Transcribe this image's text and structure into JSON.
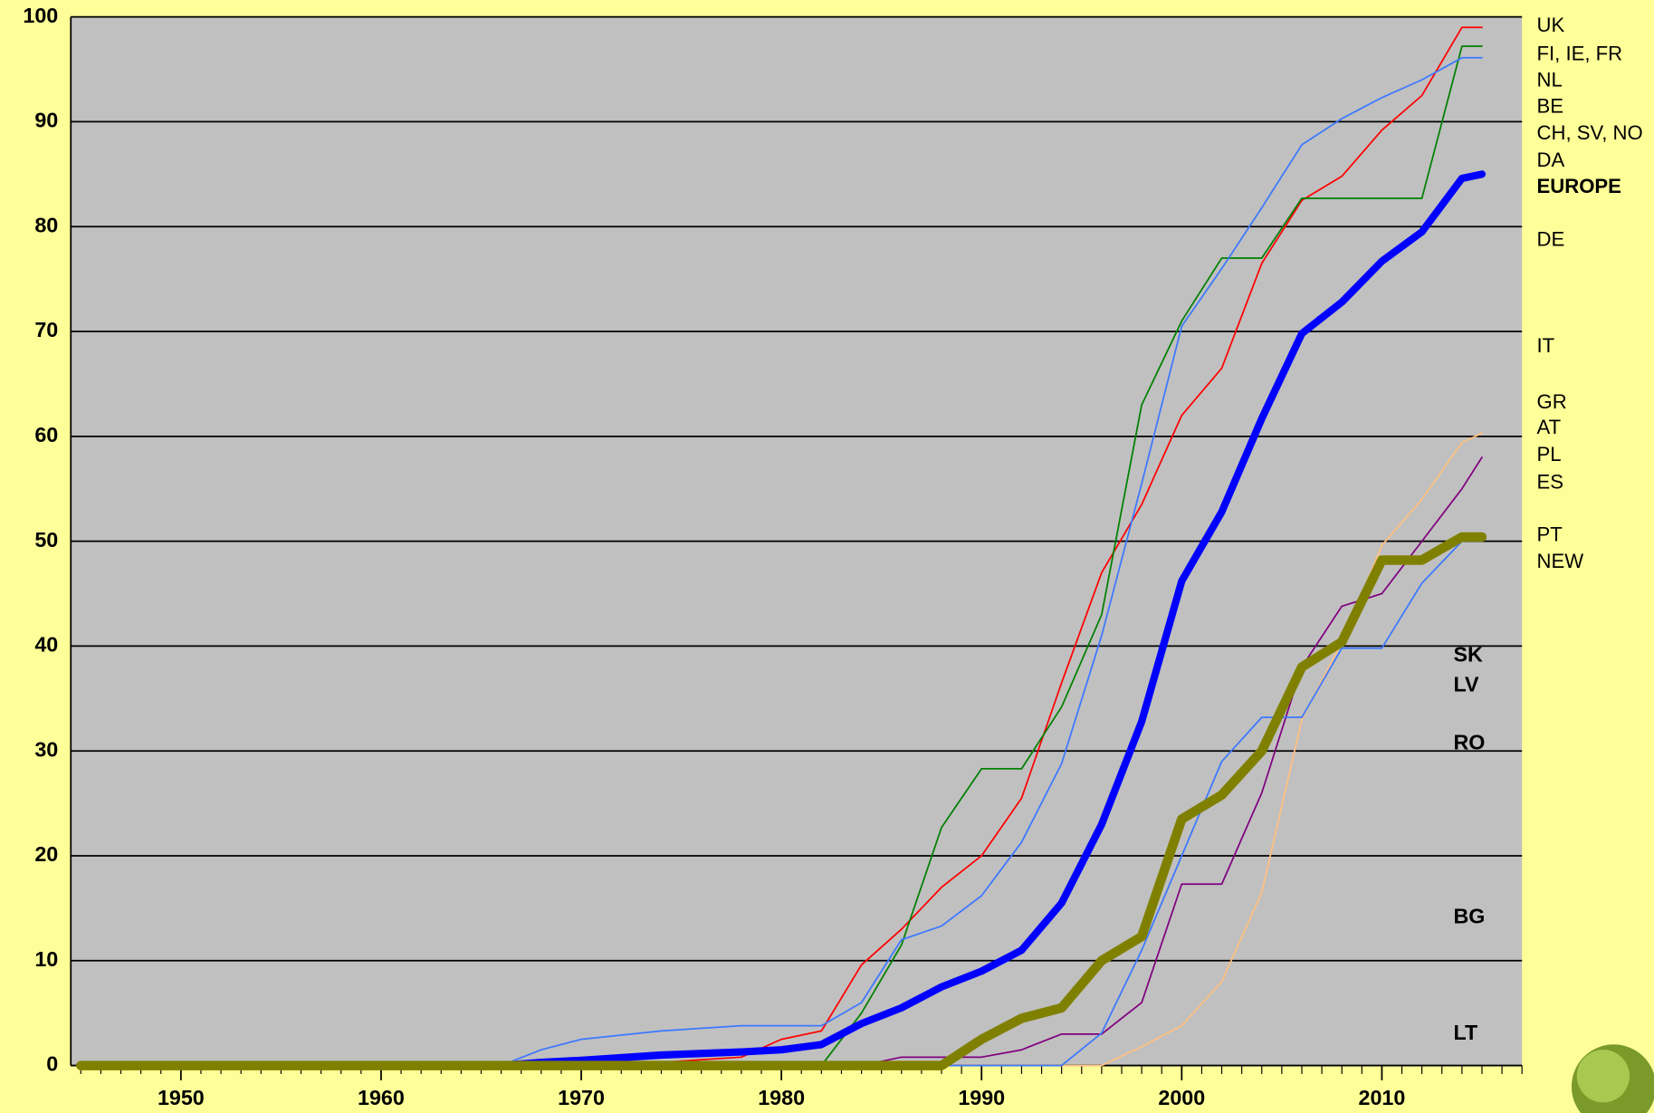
{
  "chart_data": {
    "type": "line",
    "x": [
      1945,
      1966,
      1968,
      1970,
      1974,
      1978,
      1980,
      1982,
      1984,
      1986,
      1988,
      1990,
      1992,
      1994,
      1996,
      1998,
      2000,
      2002,
      2004,
      2006,
      2008,
      2010,
      2012,
      2014,
      2015
    ],
    "series": [
      {
        "color": "#ff0000",
        "width": 1.5,
        "values": [
          0,
          0,
          0,
          0,
          0.3,
          0.8,
          2.5,
          3.3,
          9.6,
          13,
          17,
          20,
          25.5,
          36.5,
          47,
          53.5,
          62,
          66.5,
          76.5,
          82.5,
          84.8,
          89.2,
          92.5,
          99,
          99
        ]
      },
      {
        "color": "#008000",
        "width": 1.5,
        "values": [
          0,
          0,
          0,
          0,
          0,
          0,
          0,
          0,
          5,
          11.5,
          22.7,
          28.3,
          28.3,
          34.2,
          43,
          63,
          71,
          77,
          77,
          82.7,
          82.7,
          82.7,
          82.7,
          97.2,
          97.2
        ]
      },
      {
        "color": "#3c78ff",
        "width": 1.5,
        "values": [
          0,
          0,
          1.5,
          2.5,
          3.3,
          3.8,
          3.8,
          3.8,
          6,
          12,
          13.3,
          16.2,
          21.3,
          28.8,
          41,
          55.5,
          70.5,
          76,
          81.8,
          87.8,
          90.3,
          92.3,
          94,
          96.1,
          96.1
        ]
      },
      {
        "color": "#ffc080",
        "width": 1.5,
        "values": [
          0,
          0,
          0,
          0,
          0,
          0,
          0,
          0,
          0,
          0,
          0,
          0,
          0,
          0,
          0,
          1.8,
          3.8,
          8,
          16.5,
          33,
          40.4,
          49.6,
          54,
          59.4,
          60.3
        ]
      },
      {
        "color": "#800080",
        "width": 1.5,
        "values": [
          0,
          0,
          0,
          0,
          0,
          0,
          0,
          0,
          0,
          0.8,
          0.8,
          0.8,
          1.5,
          3,
          3,
          6,
          17.3,
          17.3,
          26,
          38,
          43.8,
          45,
          50,
          55,
          58
        ]
      },
      {
        "color": "#3c78ff",
        "width": 1.5,
        "values": [
          0,
          0,
          0,
          0,
          0,
          0,
          0,
          0,
          0,
          0,
          0,
          0,
          0,
          0,
          3.1,
          11,
          20,
          29,
          33.2,
          33.2,
          39.8,
          39.8,
          46,
          50,
          50.4
        ]
      },
      {
        "color": "#0000ff",
        "width": 7,
        "values": [
          0,
          0,
          0.3,
          0.5,
          1,
          1.3,
          1.5,
          2,
          4,
          5.5,
          7.5,
          9,
          11,
          15.5,
          23,
          32.8,
          46.2,
          52.8,
          61.7,
          69.8,
          72.8,
          76.7,
          79.5,
          84.6,
          85
        ]
      },
      {
        "color": "#808000",
        "width": 9,
        "values": [
          0,
          0,
          0,
          0,
          0,
          0,
          0,
          0,
          0,
          0,
          0,
          2.5,
          4.5,
          5.5,
          10,
          12.3,
          23.5,
          25.8,
          30,
          38,
          40.4,
          48.2,
          48.2,
          50.4,
          50.4
        ]
      }
    ],
    "xlim": [
      1944.5,
      2017
    ],
    "xticks": [
      1950,
      1960,
      1970,
      1980,
      1990,
      2000,
      2010
    ],
    "ylim": [
      0,
      100
    ],
    "yticks": [
      0,
      10,
      20,
      30,
      40,
      50,
      60,
      70,
      80,
      90,
      100
    ],
    "grid": true,
    "right_labels": [
      "UK",
      "FI, IE, FR",
      "NL",
      "BE",
      "CH, SV, NO",
      "DA",
      "EUROPE",
      "DE",
      "IT",
      "GR",
      "AT",
      "PL",
      "ES",
      "PT",
      "NEW"
    ],
    "inner_labels": [
      "SK",
      "LV",
      "RO",
      "BG",
      "LT"
    ]
  }
}
